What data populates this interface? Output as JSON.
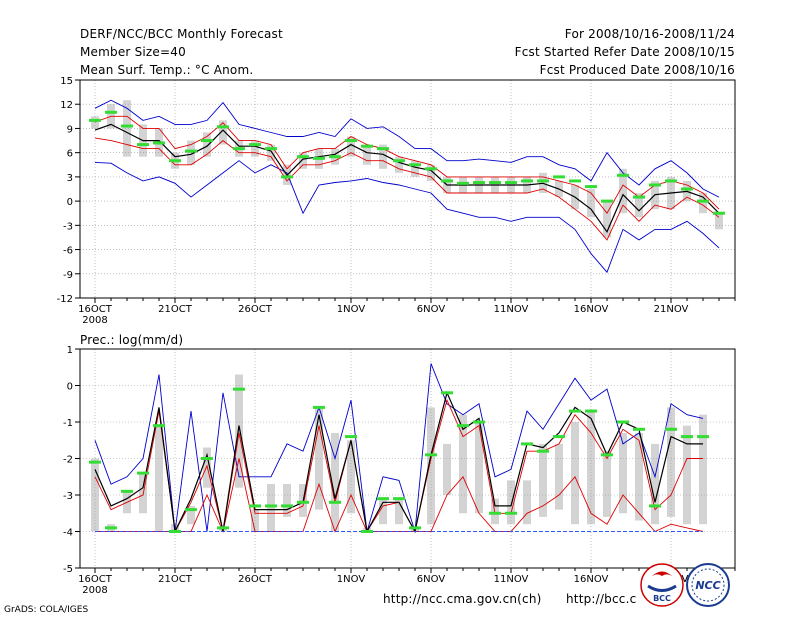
{
  "header": {
    "left": [
      "DERF/NCC/BCC Monthly Forecast",
      "Member Size=40",
      "Mean Surf. Temp.: °C Anom."
    ],
    "right": [
      "For 2008/10/16-2008/11/24",
      "Fcst Started Refer Date 2008/10/15",
      "Fcst Produced Date 2008/10/16"
    ]
  },
  "footer": {
    "credit": "GrADS: COLA/IGES",
    "url1": "http://ncc.cma.gov.cn(ch)",
    "url2": "http://bcc.c",
    "logo1_text": "BCC",
    "logo2_text": "NCC"
  },
  "colors": {
    "box": "#d3d3d3",
    "mean": "#000000",
    "outer": "#0000cd",
    "inner": "#e00000",
    "median": "#33dd33",
    "baseline": "#3355ff"
  },
  "chart_data": [
    {
      "type": "line",
      "title": "Mean Surf. Temp.: °C Anom.",
      "xlabel": "",
      "ylabel": "°C",
      "ylim": [
        -12,
        15
      ],
      "yticks": [
        "15",
        "12",
        "9",
        "6",
        "3",
        "0",
        "-3",
        "-6",
        "-9",
        "-12"
      ],
      "ytick_values": [
        15,
        12,
        9,
        6,
        3,
        0,
        -3,
        -6,
        -9,
        -12
      ],
      "xticks": [
        {
          "day": 0,
          "label": "16OCT",
          "sub": "2008"
        },
        {
          "day": 5,
          "label": "21OCT"
        },
        {
          "day": 10,
          "label": "26OCT"
        },
        {
          "day": 16,
          "label": "1NOV"
        },
        {
          "day": 21,
          "label": "6NOV"
        },
        {
          "day": 26,
          "label": "11NOV"
        },
        {
          "day": 31,
          "label": "16NOV"
        },
        {
          "day": 36,
          "label": "21NOV"
        }
      ],
      "series": [
        {
          "name": "ensemble max",
          "role": "outer",
          "values": [
            4.8,
            4.7,
            3.5,
            2.5,
            3.0,
            2.2,
            0.5,
            2.0,
            3.5,
            5.0,
            3.5,
            4.5,
            3.5,
            -1.5,
            2.0,
            2.3,
            2.5,
            2.8,
            2.3,
            2.0,
            1.5,
            1.0,
            -1.0,
            -1.5,
            -2.0,
            -2.0,
            -2.5,
            -2.0,
            -2.0,
            -2.0,
            -3.5,
            -6.5,
            -8.8,
            -3.5,
            -4.8,
            -3.5,
            -3.5,
            -2.5,
            -4.0,
            -5.8
          ]
        },
        {
          "name": "ensemble min",
          "role": "outer",
          "values": [
            11.5,
            12.5,
            11.5,
            10.0,
            10.5,
            9.5,
            9.5,
            10.0,
            12.2,
            9.5,
            9.0,
            8.5,
            8.0,
            8.0,
            8.5,
            8.0,
            10.2,
            9.0,
            9.2,
            8.0,
            6.5,
            6.5,
            5.0,
            5.0,
            5.2,
            5.0,
            4.8,
            5.5,
            5.5,
            4.5,
            4.0,
            2.5,
            6.0,
            3.5,
            2.0,
            4.0,
            5.0,
            3.5,
            1.5,
            0.5
          ]
        },
        {
          "name": "lower quartile",
          "role": "inner",
          "values": [
            7.8,
            7.5,
            7.0,
            6.5,
            6.5,
            4.5,
            4.5,
            5.8,
            7.5,
            6.0,
            6.0,
            5.5,
            2.5,
            4.5,
            4.5,
            5.0,
            6.0,
            5.0,
            5.0,
            4.0,
            3.5,
            3.0,
            1.0,
            1.0,
            1.0,
            1.0,
            1.0,
            1.0,
            1.5,
            0.5,
            -1.0,
            -2.5,
            -4.8,
            -0.5,
            -2.5,
            -0.5,
            -1.0,
            0.5,
            -0.5,
            -2.0
          ]
        },
        {
          "name": "upper quartile",
          "role": "inner",
          "values": [
            9.8,
            10.5,
            10.5,
            9.0,
            9.0,
            6.5,
            7.0,
            8.0,
            9.7,
            7.5,
            7.5,
            7.0,
            4.0,
            6.0,
            6.5,
            6.5,
            8.0,
            7.0,
            6.5,
            5.5,
            5.0,
            4.5,
            3.0,
            3.0,
            3.0,
            3.0,
            3.0,
            3.0,
            3.0,
            2.5,
            2.0,
            1.0,
            -1.5,
            2.0,
            0.5,
            2.0,
            2.5,
            2.0,
            1.0,
            -1.0
          ]
        },
        {
          "name": "ensemble mean",
          "role": "mean",
          "values": [
            8.8,
            9.5,
            8.5,
            7.5,
            7.5,
            5.5,
            5.8,
            6.8,
            8.8,
            6.8,
            6.8,
            6.2,
            3.2,
            5.2,
            5.5,
            5.8,
            7.0,
            6.0,
            5.8,
            4.8,
            4.2,
            3.8,
            2.0,
            2.0,
            2.0,
            2.0,
            2.0,
            2.0,
            2.2,
            1.5,
            0.5,
            -1.0,
            -3.8,
            0.8,
            -1.2,
            0.8,
            1.0,
            1.2,
            0.5,
            -1.5
          ]
        }
      ],
      "boxes": {
        "low": [
          9.0,
          9.0,
          5.5,
          5.5,
          5.5,
          4.0,
          4.5,
          5.5,
          7.0,
          5.5,
          5.5,
          5.0,
          2.0,
          4.0,
          4.0,
          4.5,
          5.5,
          4.5,
          4.0,
          3.5,
          3.0,
          2.5,
          1.0,
          1.0,
          1.0,
          1.0,
          1.0,
          1.0,
          1.0,
          0.5,
          -1.0,
          -2.0,
          -4.5,
          -1.5,
          -2.0,
          -1.0,
          -1.0,
          0.0,
          -1.5,
          -3.5
        ],
        "high": [
          10.5,
          12.0,
          12.5,
          9.5,
          9.0,
          6.0,
          7.5,
          8.5,
          10.0,
          7.5,
          7.5,
          7.0,
          4.5,
          6.0,
          6.5,
          6.5,
          8.0,
          7.0,
          7.0,
          5.5,
          5.0,
          4.5,
          3.0,
          3.0,
          3.0,
          3.0,
          3.0,
          3.0,
          3.5,
          2.5,
          2.0,
          1.5,
          0.0,
          4.0,
          1.0,
          2.5,
          3.0,
          2.5,
          1.0,
          -1.5
        ],
        "median": [
          10.0,
          11.0,
          9.3,
          7.0,
          7.2,
          5.0,
          6.2,
          7.5,
          9.2,
          6.5,
          7.0,
          6.5,
          3.0,
          5.5,
          5.3,
          5.5,
          7.5,
          6.8,
          6.5,
          5.0,
          4.5,
          4.0,
          2.5,
          2.2,
          2.3,
          2.3,
          2.3,
          2.5,
          2.5,
          3.0,
          2.5,
          1.8,
          0.0,
          3.2,
          0.5,
          2.0,
          2.5,
          1.5,
          0.0,
          -1.5
        ]
      }
    },
    {
      "type": "line",
      "title": "Prec.: log(mm/d)",
      "xlabel": "",
      "ylabel": "log(mm/d)",
      "ylim": [
        -5,
        1
      ],
      "yticks": [
        "1",
        "0",
        "-1",
        "-2",
        "-3",
        "-4",
        "-5"
      ],
      "ytick_values": [
        1,
        0,
        -1,
        -2,
        -3,
        -4,
        -5
      ],
      "xticks": [
        {
          "day": 0,
          "label": "16OCT",
          "sub": "2008"
        },
        {
          "day": 5,
          "label": "21OCT"
        },
        {
          "day": 10,
          "label": "26OCT"
        },
        {
          "day": 16,
          "label": "1NOV"
        },
        {
          "day": 21,
          "label": "6NOV"
        },
        {
          "day": 26,
          "label": "11NOV"
        },
        {
          "day": 31,
          "label": "16NOV"
        },
        {
          "day": 36,
          "label": "21NOV"
        }
      ],
      "series": [
        {
          "name": "ensemble max",
          "role": "outer",
          "values": [
            -1.5,
            -2.7,
            -2.5,
            -2.0,
            0.3,
            -4.0,
            -0.7,
            -4.0,
            -0.2,
            -2.5,
            -2.5,
            -2.5,
            -1.6,
            -1.8,
            -0.6,
            -2.0,
            -0.4,
            -4.0,
            -2.5,
            -2.6,
            -4.0,
            0.6,
            -0.5,
            -0.8,
            -0.5,
            -2.5,
            -2.3,
            -0.7,
            -1.2,
            -0.5,
            0.2,
            -0.4,
            -0.1,
            -1.6,
            -1.3,
            -2.5,
            -0.5,
            -0.8,
            -0.9
          ]
        },
        {
          "name": "upper",
          "role": "inner",
          "values": [
            -2.5,
            -3.4,
            -3.2,
            -3.0,
            -0.7,
            -4.0,
            -3.2,
            -2.2,
            -4.0,
            -1.3,
            -3.5,
            -3.5,
            -3.5,
            -3.3,
            -1.1,
            -3.2,
            -1.5,
            -4.0,
            -3.3,
            -3.2,
            -4.0,
            -2.0,
            -0.4,
            -1.4,
            -1.1,
            -3.5,
            -3.5,
            -1.8,
            -1.8,
            -1.6,
            -0.8,
            -1.3,
            -2.0,
            -1.2,
            -1.5,
            -3.4,
            -3.0,
            -2.0,
            -2.0
          ]
        },
        {
          "name": "lower",
          "role": "inner",
          "values": [
            -4.0,
            -4.0,
            -4.0,
            -4.0,
            -4.0,
            -4.0,
            -4.0,
            -3.0,
            -4.0,
            -2.0,
            -4.0,
            -4.0,
            -4.0,
            -4.0,
            -2.7,
            -4.0,
            -3.0,
            -4.0,
            -4.0,
            -4.0,
            -4.0,
            -4.0,
            -3.0,
            -2.5,
            -3.5,
            -4.0,
            -4.0,
            -3.5,
            -3.3,
            -3.0,
            -2.5,
            -3.5,
            -3.8,
            -3.0,
            -3.5,
            -4.0,
            -3.8,
            -3.9,
            -4.0
          ]
        },
        {
          "name": "ensemble mean",
          "role": "mean",
          "values": [
            -2.3,
            -3.3,
            -3.1,
            -2.8,
            -0.6,
            -4.0,
            -3.1,
            -1.9,
            -4.0,
            -1.1,
            -3.4,
            -3.4,
            -3.4,
            -3.2,
            -0.8,
            -3.1,
            -1.5,
            -4.0,
            -3.2,
            -3.2,
            -4.0,
            -1.9,
            -0.2,
            -1.2,
            -0.9,
            -3.3,
            -3.3,
            -1.6,
            -1.7,
            -1.3,
            -0.6,
            -0.9,
            -1.9,
            -1.0,
            -1.2,
            -3.2,
            -1.4,
            -1.6,
            -1.6
          ]
        },
        {
          "name": "ensemble min",
          "role": "baseline",
          "values": [
            -4.0,
            -4.0,
            -4.0,
            -4.0,
            -4.0,
            -4.0,
            -4.0,
            -4.0,
            -4.0,
            -4.0,
            -4.0,
            -4.0,
            -4.0,
            -4.0,
            -4.0,
            -4.0,
            -4.0,
            -4.0,
            -4.0,
            -4.0,
            -4.0,
            -4.0,
            -4.0,
            -4.0,
            -4.0,
            -4.0,
            -4.0,
            -4.0,
            -4.0,
            -4.0,
            -4.0,
            -4.0,
            -4.0,
            -4.0,
            -4.0,
            -4.0,
            -4.0,
            -4.0,
            -4.0
          ]
        }
      ],
      "boxes": {
        "low": [
          -4.0,
          -4.0,
          -3.5,
          -3.5,
          -4.0,
          -4.0,
          -3.8,
          -2.8,
          -4.0,
          -2.8,
          -4.0,
          -4.0,
          -3.6,
          -3.6,
          -3.4,
          -4.0,
          -3.5,
          -4.0,
          -3.8,
          -3.8,
          -4.0,
          -3.8,
          -3.0,
          -3.5,
          -3.5,
          -3.8,
          -3.8,
          -3.8,
          -3.6,
          -3.4,
          -3.8,
          -3.8,
          -3.6,
          -3.5,
          -3.7,
          -3.8,
          -3.6,
          -3.8,
          -3.8
        ],
        "high": [
          -2.0,
          -3.8,
          -2.9,
          -2.4,
          -1.1,
          -3.8,
          -3.3,
          -1.7,
          -3.9,
          0.3,
          -3.4,
          -2.7,
          -2.7,
          -2.7,
          -0.6,
          -1.3,
          -1.5,
          -3.9,
          -3.1,
          -3.1,
          -3.9,
          -0.6,
          -1.6,
          -0.8,
          -1.0,
          -3.1,
          -2.6,
          -2.6,
          -1.6,
          -1.6,
          -1.0,
          -0.7,
          -1.8,
          -1.3,
          -1.3,
          -1.6,
          -0.6,
          -1.1,
          -0.8
        ],
        "median": [
          -2.1,
          -3.9,
          -2.9,
          -2.4,
          -1.1,
          -4.0,
          -3.4,
          -2.0,
          -3.9,
          -0.1,
          -3.3,
          -3.3,
          -3.3,
          -3.2,
          -0.6,
          -3.2,
          -1.4,
          -4.0,
          -3.1,
          -3.1,
          -3.9,
          -1.9,
          -0.2,
          -1.1,
          -1.0,
          -3.5,
          -3.5,
          -1.6,
          -1.8,
          -1.4,
          -0.7,
          -0.7,
          -1.9,
          -1.0,
          -1.2,
          -3.3,
          -1.2,
          -1.4,
          -1.4
        ]
      }
    }
  ]
}
